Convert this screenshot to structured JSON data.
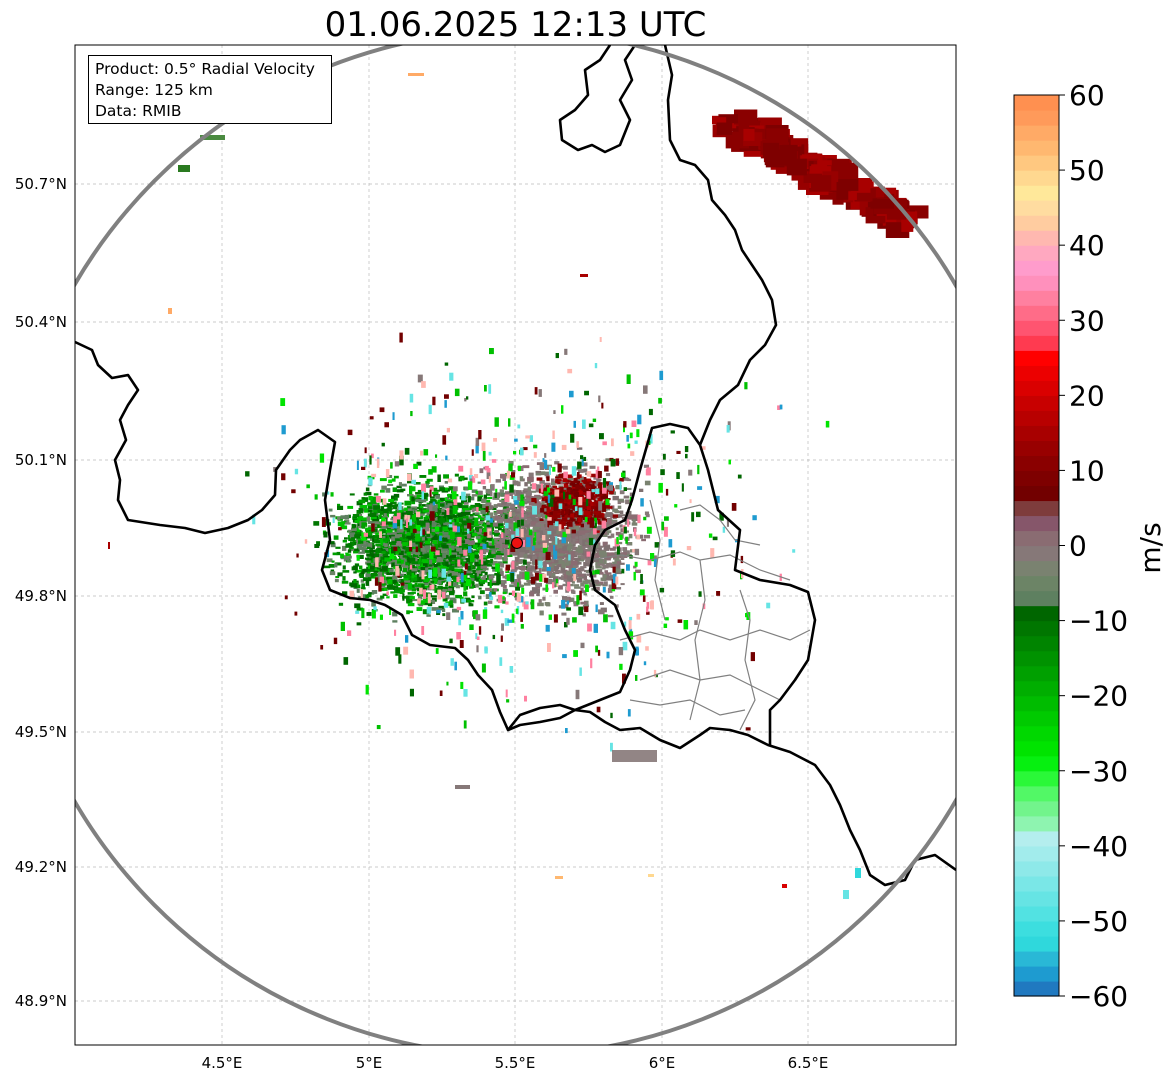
{
  "title": "01.06.2025 12:13 UTC",
  "info": {
    "product": "Product: 0.5° Radial Velocity",
    "range": "Range: 125 km",
    "data": "Data: RMIB"
  },
  "map": {
    "lon_ticks": [
      "4.5°E",
      "5°E",
      "5.5°E",
      "6°E",
      "6.5°E"
    ],
    "lat_ticks": [
      "50.7°N",
      "50.4°N",
      "50.1°N",
      "49.8°N",
      "49.5°N",
      "49.2°N",
      "48.9°N"
    ],
    "lon_range": [
      4.0,
      7.0
    ],
    "lat_range": [
      48.8,
      50.98
    ],
    "radar_site": {
      "lon": 5.505,
      "lat": 49.914
    },
    "range_ring_color": "#808080",
    "border_color": "#000000",
    "admin_border_color": "#808080"
  },
  "colorbar": {
    "label": "m/s",
    "ticks": [
      "60",
      "50",
      "40",
      "30",
      "20",
      "10",
      "0",
      "−10",
      "−20",
      "−30",
      "−40",
      "−50",
      "−60"
    ],
    "range": [
      -60,
      60
    ],
    "colors": [
      "#2079c0",
      "#1e9bd0",
      "#29b8d6",
      "#2fd8dc",
      "#3cdedf",
      "#52e2e2",
      "#66e4e4",
      "#7ae7e7",
      "#8ee9e9",
      "#a2ecec",
      "#b4eeee",
      "#8ef4b0",
      "#72f48c",
      "#52f866",
      "#2af838",
      "#06f010",
      "#00e400",
      "#00d800",
      "#00ca00",
      "#00bc00",
      "#00ae00",
      "#00a000",
      "#009200",
      "#008400",
      "#007600",
      "#006600",
      "#5e8060",
      "#6c8466",
      "#7a8270",
      "#867878",
      "#8a6c72",
      "#86566a",
      "#7e3c3c",
      "#720000",
      "#7e0000",
      "#8a0000",
      "#980000",
      "#a80000",
      "#b80000",
      "#c80000",
      "#da0000",
      "#ec0000",
      "#ff0000",
      "#ff3a50",
      "#ff5470",
      "#ff6c88",
      "#ff80a0",
      "#ff90bc",
      "#ff9ccc",
      "#ffa8c0",
      "#ffb8b0",
      "#ffcca0",
      "#ffdca0",
      "#ffe89a",
      "#ffd890",
      "#ffc880",
      "#ffb870",
      "#ffaa66",
      "#ff9a5a",
      "#ff9050"
    ]
  }
}
